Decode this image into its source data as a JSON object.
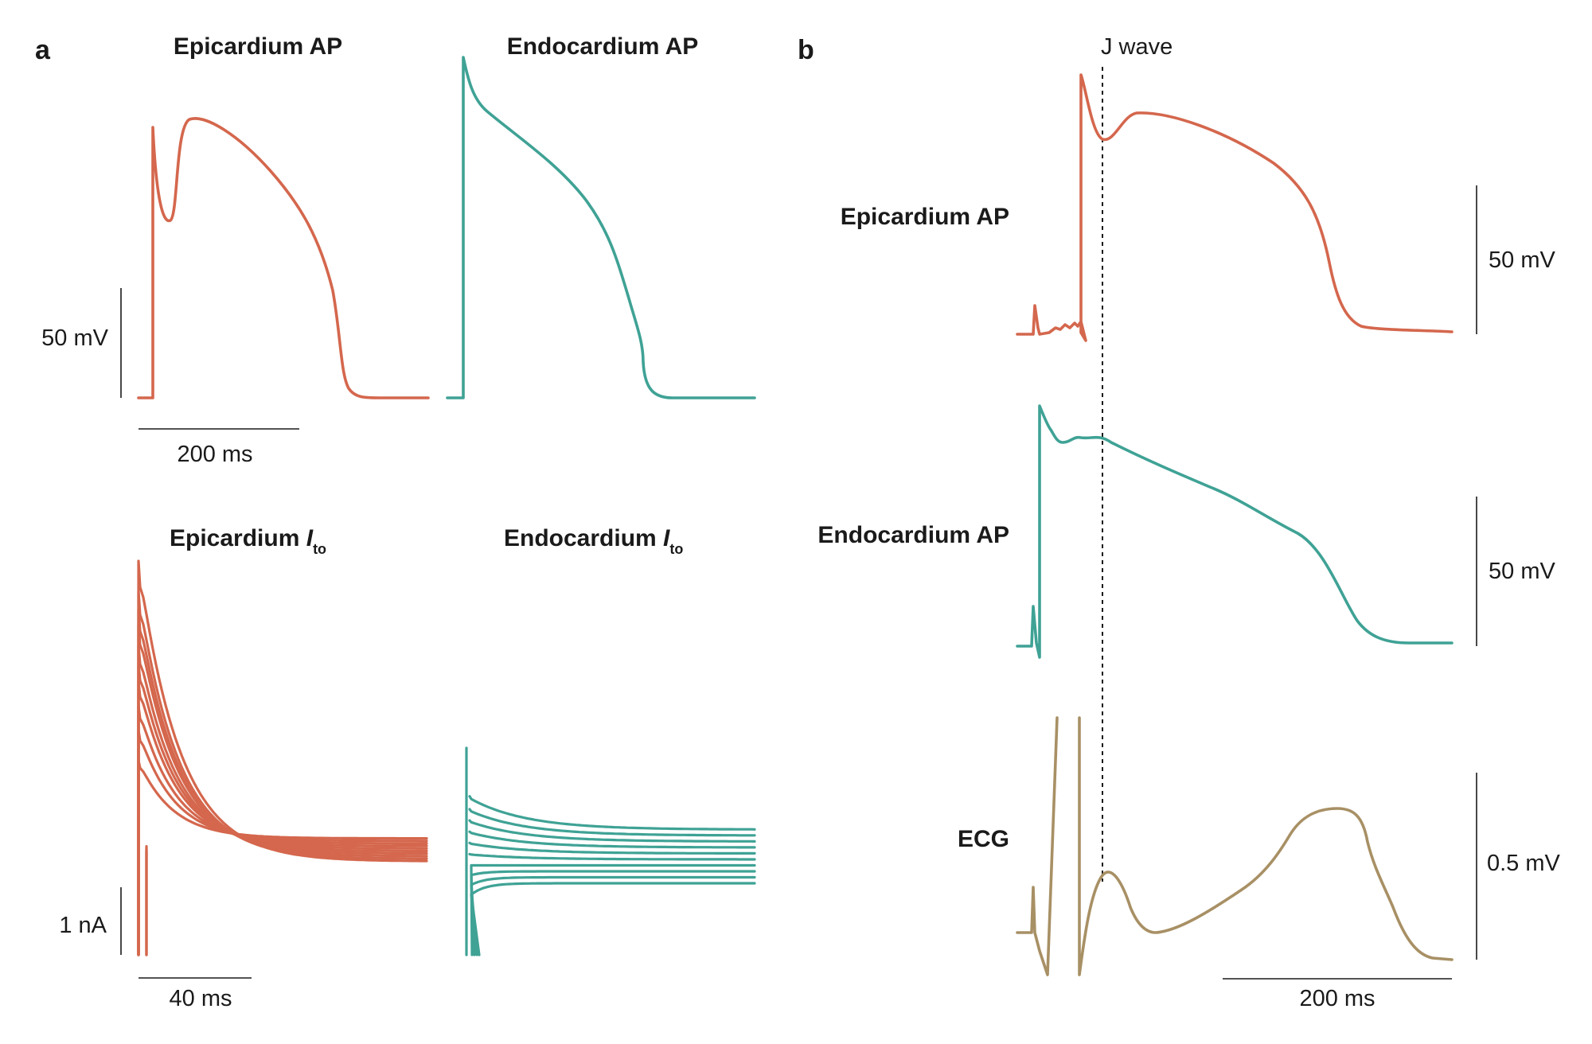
{
  "colors": {
    "epi": "#d4674d",
    "endo": "#3fa295",
    "ecg": "#a89065"
  },
  "panel_a": {
    "letter": "a",
    "epi_ap_title": "Epicardium AP",
    "endo_ap_title": "Endocardium AP",
    "ap_scale_voltage": "50 mV",
    "ap_scale_time": "200 ms",
    "epi_ito_title": "Epicardium ",
    "endo_ito_title": "Endocardium ",
    "ito_italic": "I",
    "ito_sub": "to",
    "ito_scale_current": "1 nA",
    "ito_scale_time": "40 ms"
  },
  "panel_b": {
    "letter": "b",
    "j_wave_label": "J wave",
    "epi_ap_label": "Epicardium AP",
    "endo_ap_label": "Endocardium AP",
    "ecg_label": "ECG",
    "epi_scale": "50 mV",
    "endo_scale": "50 mV",
    "ecg_scale": "0.5 mV",
    "time_scale": "200 ms"
  },
  "traces": {
    "epi_ito_peaks": [
      0.34,
      0.44,
      0.52,
      0.6,
      0.66,
      0.72,
      0.79,
      0.84,
      0.9,
      1.0
    ],
    "endo_ito_levels": [
      -0.18,
      -0.12,
      -0.06,
      0.0,
      0.06,
      0.12,
      0.18,
      0.24,
      0.3,
      0.38
    ]
  }
}
